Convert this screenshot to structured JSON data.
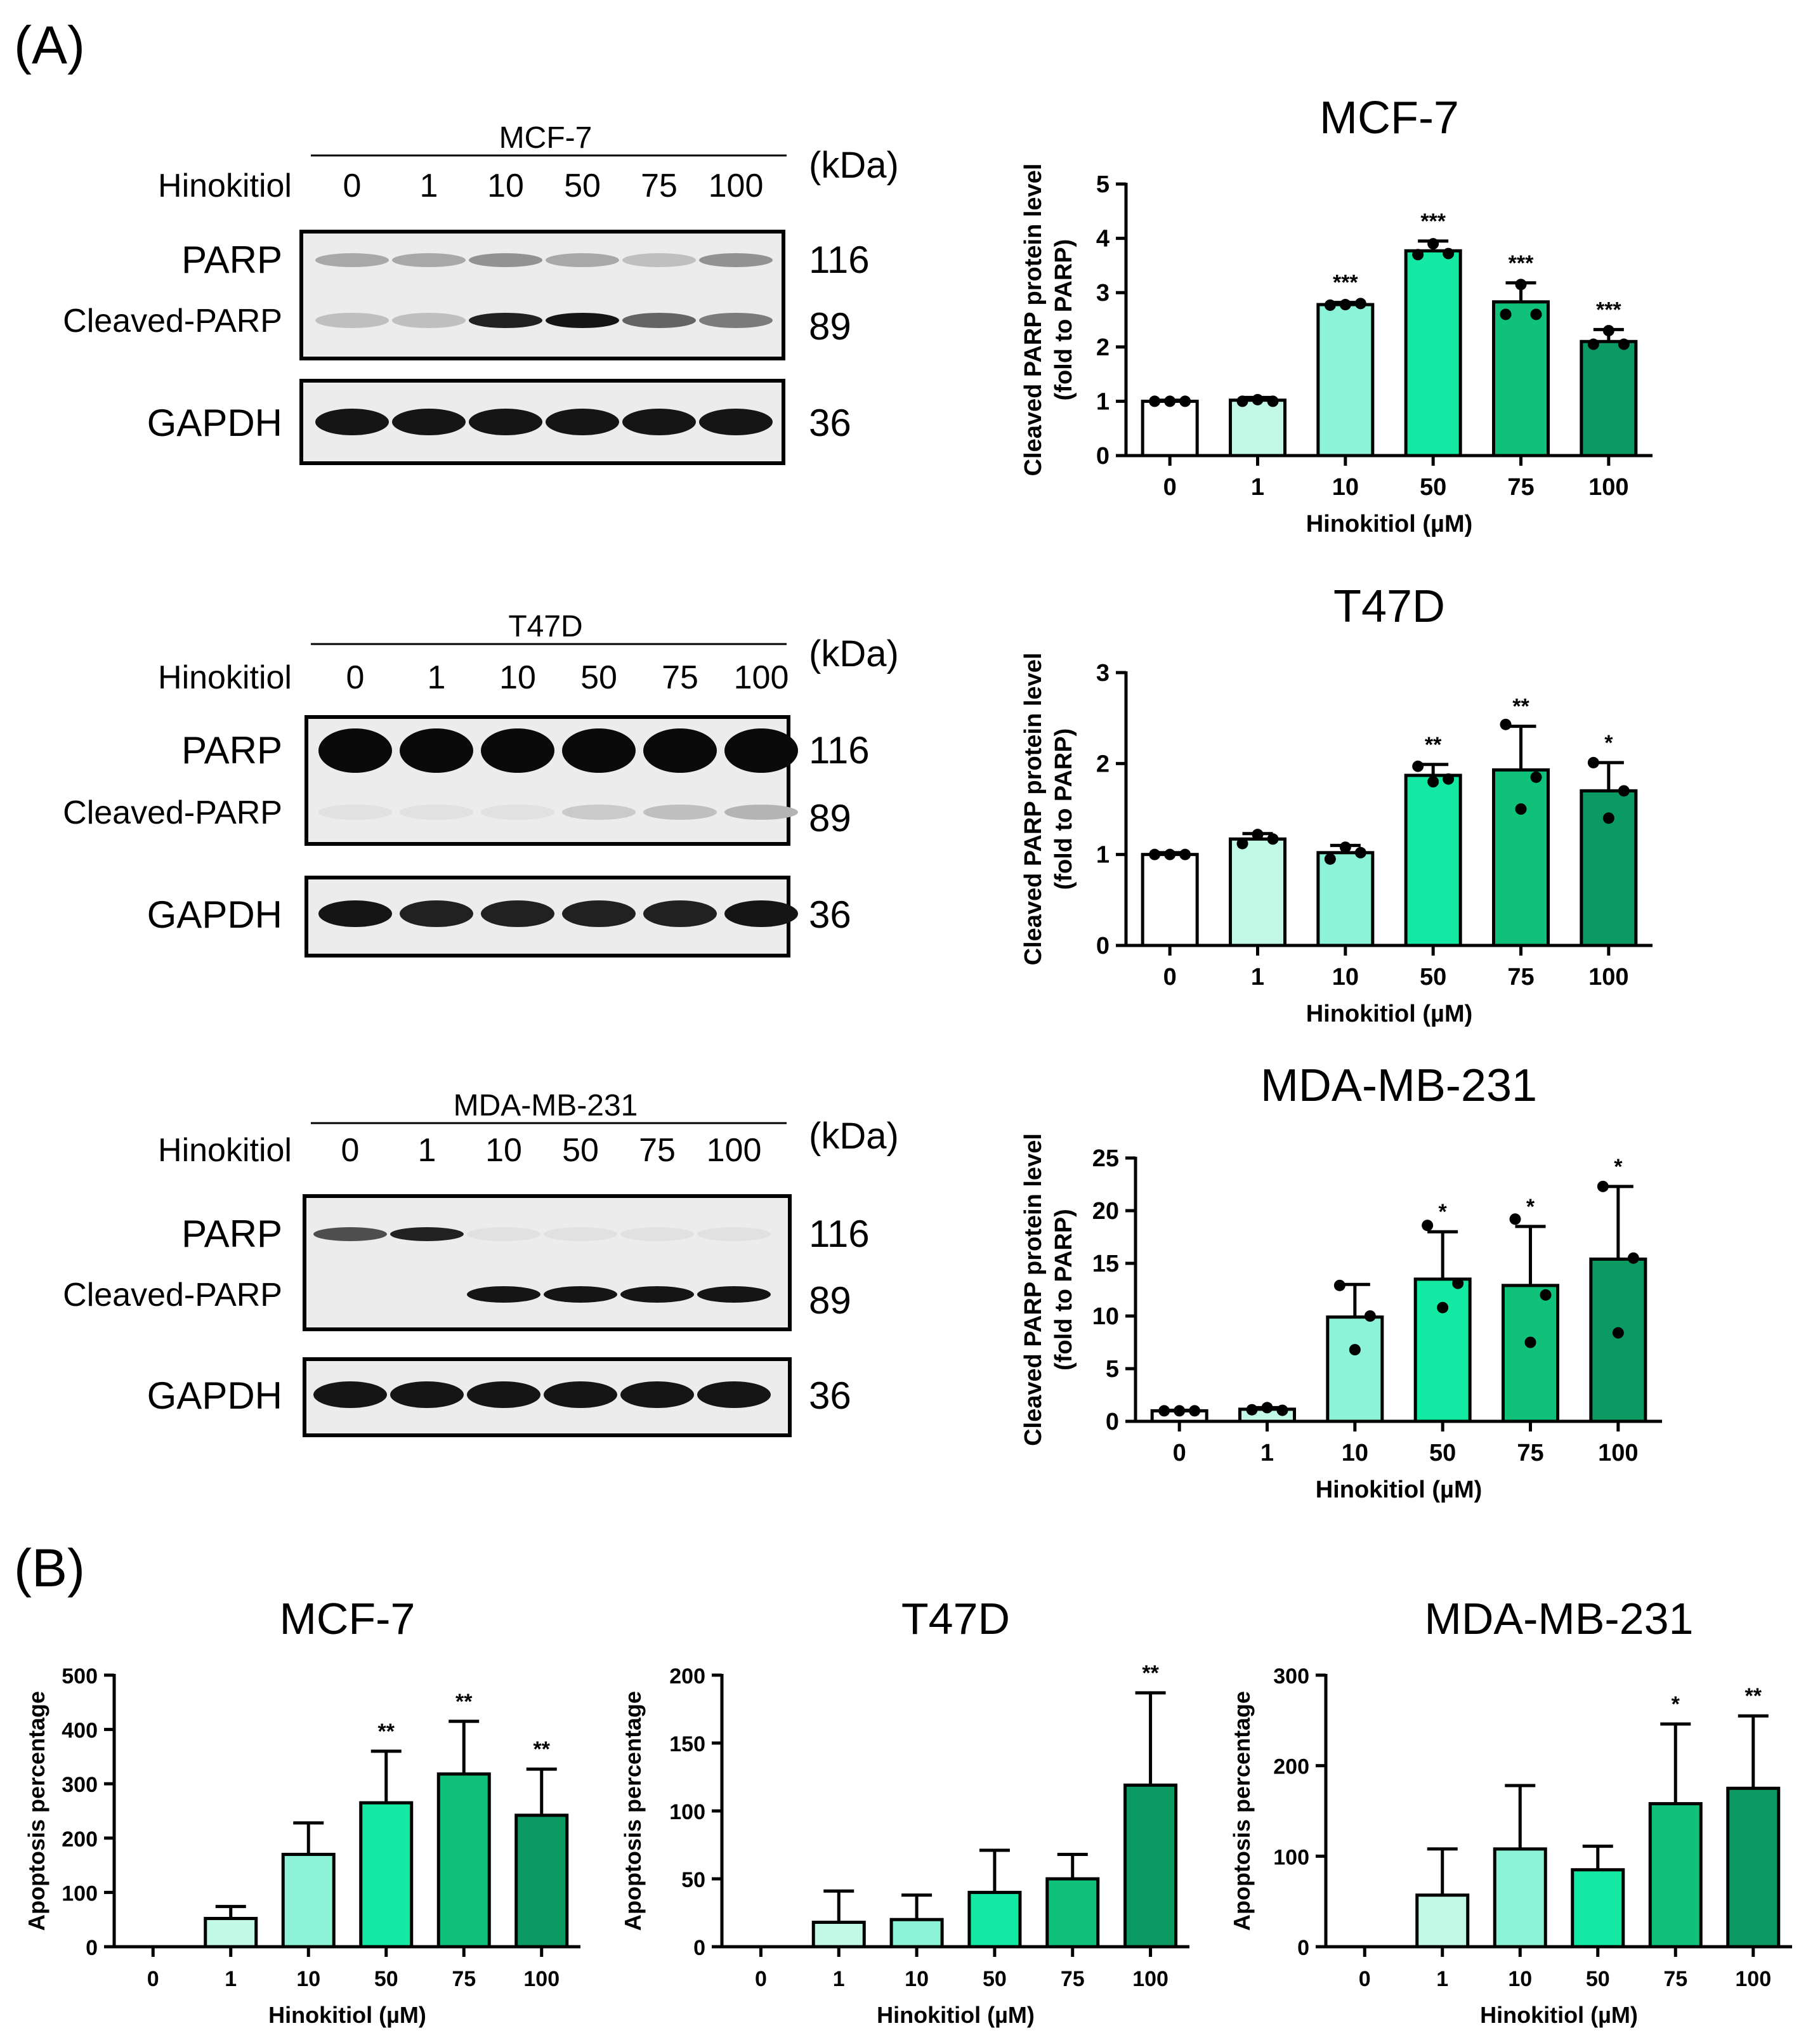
{
  "panel_labels": {
    "a": "(A)",
    "b": "(B)"
  },
  "bar_colors": [
    "#ffffff",
    "#c1f9e6",
    "#8cf3d7",
    "#14e9a4",
    "#0fc179",
    "#0b9a61"
  ],
  "western_blots": [
    {
      "id": "mcf7",
      "cell_line": "MCF-7",
      "treatment_label": "Hinokitiol",
      "doses": [
        "0",
        "1",
        "10",
        "50",
        "75",
        "100"
      ],
      "kda_label": "(kDa)",
      "labels": {
        "parp": "PARP",
        "cleaved": "Cleaved-PARP",
        "gapdh": "GAPDH"
      },
      "kda": {
        "parp": "116",
        "cleaved": "89",
        "gapdh": "36"
      },
      "band_intensity": {
        "parp": [
          0.3,
          0.3,
          0.4,
          0.3,
          0.2,
          0.4
        ],
        "cleaved": [
          0.2,
          0.2,
          0.9,
          0.95,
          0.6,
          0.5
        ],
        "gapdh": [
          0.95,
          0.95,
          0.95,
          0.95,
          0.95,
          0.95
        ]
      }
    },
    {
      "id": "t47d",
      "cell_line": "T47D",
      "treatment_label": "Hinokitiol",
      "doses": [
        "0",
        "1",
        "10",
        "50",
        "75",
        "100"
      ],
      "kda_label": "(kDa)",
      "labels": {
        "parp": "PARP",
        "cleaved": "Cleaved-PARP",
        "gapdh": "GAPDH"
      },
      "kda": {
        "parp": "116",
        "cleaved": "89",
        "gapdh": "36"
      },
      "band_intensity": {
        "parp": [
          1.0,
          1.0,
          1.0,
          1.0,
          1.0,
          1.0
        ],
        "cleaved": [
          0.05,
          0.05,
          0.05,
          0.15,
          0.2,
          0.25
        ],
        "gapdh": [
          0.95,
          0.9,
          0.9,
          0.9,
          0.9,
          0.95
        ]
      }
    },
    {
      "id": "mda",
      "cell_line": "MDA-MB-231",
      "treatment_label": "Hinokitiol",
      "doses": [
        "0",
        "1",
        "10",
        "50",
        "75",
        "100"
      ],
      "kda_label": "(kDa)",
      "labels": {
        "parp": "PARP",
        "cleaved": "Cleaved-PARP",
        "gapdh": "GAPDH"
      },
      "kda": {
        "parp": "116",
        "cleaved": "89",
        "gapdh": "36"
      },
      "band_intensity": {
        "parp": [
          0.7,
          0.9,
          0.05,
          0.05,
          0.05,
          0.05
        ],
        "cleaved": [
          0.0,
          0.0,
          0.95,
          0.95,
          0.95,
          0.95
        ],
        "gapdh": [
          0.95,
          0.95,
          0.95,
          0.95,
          0.95,
          0.95
        ]
      }
    }
  ],
  "chart_data": [
    {
      "id": "a-mcf7",
      "type": "bar",
      "title": "MCF-7",
      "xlabel": "Hinokitiol (µM)",
      "ylabel": "Cleaved  PARP protein level\n(fold to PARP)",
      "categories": [
        "0",
        "1",
        "10",
        "50",
        "75",
        "100"
      ],
      "values": [
        1.0,
        1.02,
        2.78,
        3.77,
        2.83,
        2.1
      ],
      "errors": [
        0.02,
        0.05,
        0.04,
        0.18,
        0.35,
        0.22
      ],
      "points": [
        [
          1.0,
          1.0,
          1.0
        ],
        [
          1.0,
          1.03,
          1.0
        ],
        [
          2.77,
          2.78,
          2.8
        ],
        [
          3.7,
          3.9,
          3.72
        ],
        [
          2.6,
          3.15,
          2.6
        ],
        [
          2.05,
          2.3,
          2.05
        ]
      ],
      "significance": [
        "",
        "",
        "***",
        "***",
        "***",
        "***"
      ],
      "ylim": [
        0,
        5
      ],
      "yticks": [
        0,
        1,
        2,
        3,
        4,
        5
      ]
    },
    {
      "id": "a-t47d",
      "type": "bar",
      "title": "T47D",
      "xlabel": "Hinokitiol (µM)",
      "ylabel": "Cleaved  PARP protein level\n(fold to PARP)",
      "categories": [
        "0",
        "1",
        "10",
        "50",
        "75",
        "100"
      ],
      "values": [
        1.0,
        1.17,
        1.02,
        1.87,
        1.93,
        1.7
      ],
      "errors": [
        0.02,
        0.06,
        0.08,
        0.12,
        0.48,
        0.31
      ],
      "points": [
        [
          1.0,
          1.0,
          1.0
        ],
        [
          1.12,
          1.22,
          1.17
        ],
        [
          0.95,
          1.08,
          1.02
        ],
        [
          1.97,
          1.8,
          1.83
        ],
        [
          2.43,
          1.5,
          1.85
        ],
        [
          2.01,
          1.4,
          1.7
        ]
      ],
      "significance": [
        "",
        "",
        "",
        "**",
        "**",
        "*"
      ],
      "ylim": [
        0,
        3
      ],
      "yticks": [
        0,
        1,
        2,
        3
      ]
    },
    {
      "id": "a-mda",
      "type": "bar",
      "title": "MDA-MB-231",
      "xlabel": "Hinokitiol (µM)",
      "ylabel": "Cleaved  PARP protein level\n(fold to PARP)",
      "categories": [
        "0",
        "1",
        "10",
        "50",
        "75",
        "100"
      ],
      "values": [
        1.0,
        1.15,
        9.9,
        13.5,
        12.9,
        15.4
      ],
      "errors": [
        0.05,
        0.15,
        3.1,
        4.5,
        5.6,
        6.9
      ],
      "points": [
        [
          1.0,
          1.0,
          1.0
        ],
        [
          1.1,
          1.3,
          1.05
        ],
        [
          12.9,
          6.8,
          10.0
        ],
        [
          18.6,
          10.8,
          13.1
        ],
        [
          19.2,
          7.5,
          12.0
        ],
        [
          22.3,
          8.4,
          15.5
        ]
      ],
      "significance": [
        "",
        "",
        "",
        "*",
        "*",
        "*"
      ],
      "ylim": [
        0,
        25
      ],
      "yticks": [
        0,
        5,
        10,
        15,
        20,
        25
      ]
    },
    {
      "id": "b-mcf7",
      "type": "bar",
      "title": "MCF-7",
      "xlabel": "Hinokitiol (µM)",
      "ylabel": "Apoptosis percentage",
      "categories": [
        "0",
        "1",
        "10",
        "50",
        "75",
        "100"
      ],
      "values": [
        0,
        52,
        170,
        265,
        318,
        242
      ],
      "errors": [
        0,
        22,
        58,
        95,
        97,
        85
      ],
      "significance": [
        "",
        "",
        "",
        "**",
        "**",
        "**"
      ],
      "ylim": [
        0,
        500
      ],
      "yticks": [
        0,
        100,
        200,
        300,
        400,
        500
      ]
    },
    {
      "id": "b-t47d",
      "type": "bar",
      "title": "T47D",
      "xlabel": "Hinokitiol (µM)",
      "ylabel": "Apoptosis percentage",
      "categories": [
        "0",
        "1",
        "10",
        "50",
        "75",
        "100"
      ],
      "values": [
        0,
        18,
        20,
        40,
        50,
        119
      ],
      "errors": [
        0,
        23,
        18,
        31,
        18,
        68
      ],
      "significance": [
        "",
        "",
        "",
        "",
        "",
        "**"
      ],
      "ylim": [
        0,
        200
      ],
      "yticks": [
        0,
        50,
        100,
        150,
        200
      ]
    },
    {
      "id": "b-mda",
      "type": "bar",
      "title": "MDA-MB-231",
      "xlabel": "Hinokitiol (µM)",
      "ylabel": "Apoptosis percentage",
      "categories": [
        "0",
        "1",
        "10",
        "50",
        "75",
        "100"
      ],
      "values": [
        0,
        57,
        108,
        85,
        158,
        175
      ],
      "errors": [
        0,
        51,
        70,
        26,
        88,
        80
      ],
      "significance": [
        "",
        "",
        "",
        "",
        "*",
        "**"
      ],
      "ylim": [
        0,
        300
      ],
      "yticks": [
        0,
        100,
        200,
        300
      ]
    }
  ]
}
